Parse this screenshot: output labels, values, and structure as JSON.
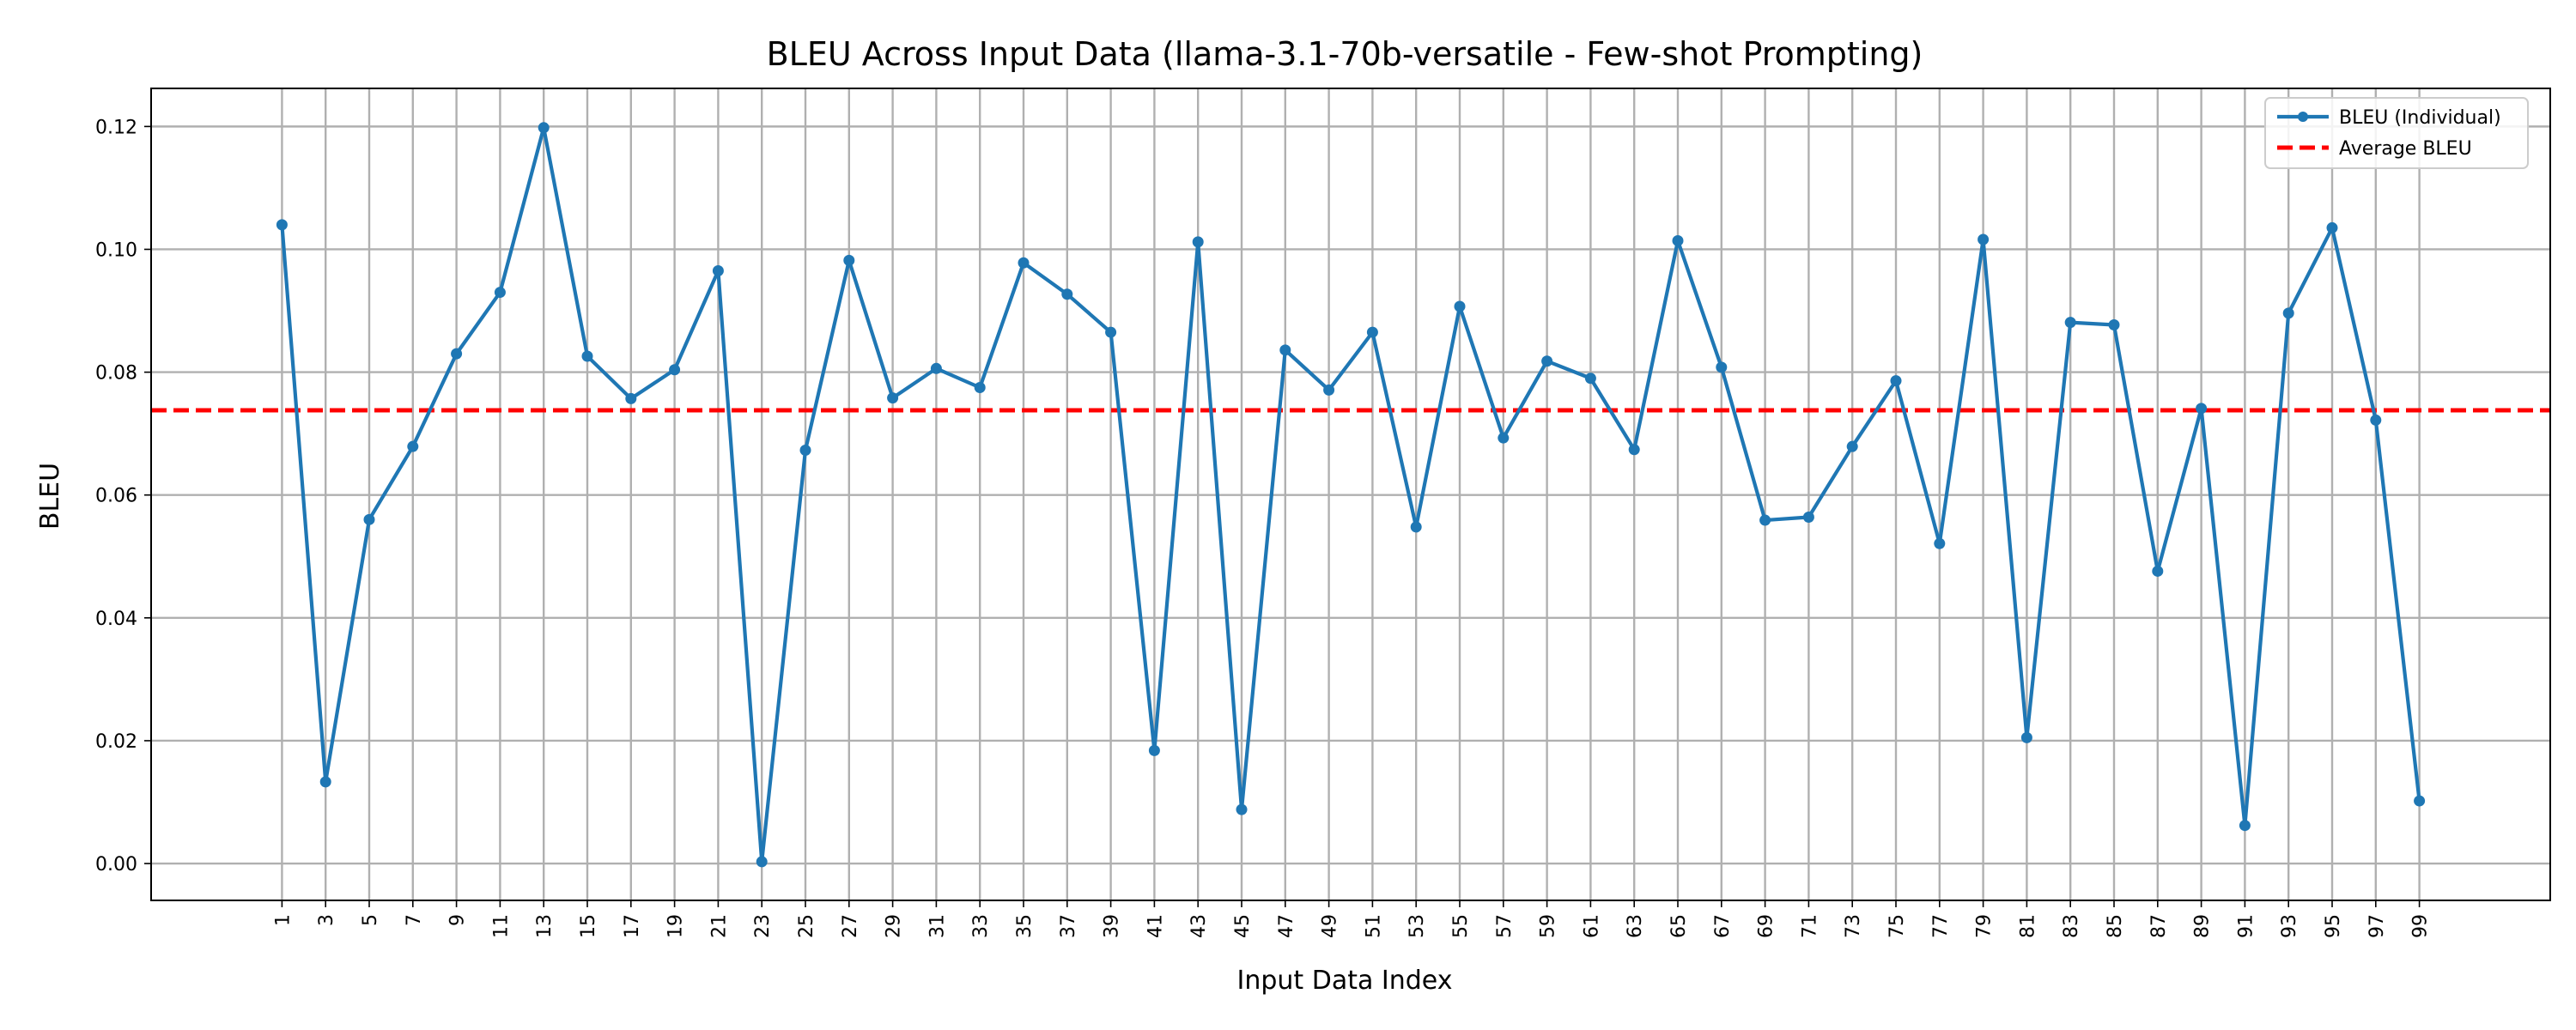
{
  "chart_data": {
    "type": "line",
    "title": "BLEU Across Input Data (llama-3.1-70b-versatile - Few-shot Prompting)",
    "xlabel": "Input Data Index",
    "ylabel": "BLEU",
    "xlim": [
      -5,
      105
    ],
    "ylim": [
      -0.006,
      0.1262
    ],
    "xticks": [
      1,
      3,
      5,
      7,
      9,
      11,
      13,
      15,
      17,
      19,
      21,
      23,
      25,
      27,
      29,
      31,
      33,
      35,
      37,
      39,
      41,
      43,
      45,
      47,
      49,
      51,
      53,
      55,
      57,
      59,
      61,
      63,
      65,
      67,
      69,
      71,
      73,
      75,
      77,
      79,
      81,
      83,
      85,
      87,
      89,
      91,
      93,
      95,
      97,
      99
    ],
    "xtick_labels": [
      "1",
      "3",
      "5",
      "7",
      "9",
      "11",
      "13",
      "15",
      "17",
      "19",
      "21",
      "23",
      "25",
      "27",
      "29",
      "31",
      "33",
      "35",
      "37",
      "39",
      "41",
      "43",
      "45",
      "47",
      "49",
      "51",
      "53",
      "55",
      "57",
      "59",
      "61",
      "63",
      "65",
      "67",
      "69",
      "71",
      "73",
      "75",
      "77",
      "79",
      "81",
      "83",
      "85",
      "87",
      "89",
      "91",
      "93",
      "95",
      "97",
      "99"
    ],
    "yticks": [
      0,
      0.02,
      0.04,
      0.06,
      0.08,
      0.1,
      0.12
    ],
    "ytick_labels": [
      "0.00",
      "0.02",
      "0.04",
      "0.06",
      "0.08",
      "0.10",
      "0.12"
    ],
    "grid": true,
    "legend": "top-right",
    "series": [
      {
        "name": "BLEU (Individual)",
        "color": "#1f77b4",
        "style": "solid-with-markers",
        "x": [
          1,
          3,
          5,
          7,
          9,
          11,
          13,
          15,
          17,
          19,
          21,
          23,
          25,
          27,
          29,
          31,
          33,
          35,
          37,
          39,
          41,
          43,
          45,
          47,
          49,
          51,
          53,
          55,
          57,
          59,
          61,
          63,
          65,
          67,
          69,
          71,
          73,
          75,
          77,
          79,
          81,
          83,
          85,
          87,
          89,
          91,
          93,
          95,
          97,
          99
        ],
        "values": [
          0.104,
          0.0133,
          0.056,
          0.0679,
          0.083,
          0.093,
          0.1198,
          0.0826,
          0.0757,
          0.0804,
          0.0965,
          0.0003,
          0.0673,
          0.0982,
          0.0758,
          0.0806,
          0.0775,
          0.0978,
          0.0927,
          0.0865,
          0.0184,
          0.1012,
          0.0088,
          0.0836,
          0.0771,
          0.0865,
          0.0548,
          0.0907,
          0.0693,
          0.0818,
          0.079,
          0.0674,
          0.1014,
          0.0808,
          0.0559,
          0.0564,
          0.0679,
          0.0786,
          0.0521,
          0.1016,
          0.0205,
          0.0881,
          0.0877,
          0.0476,
          0.0741,
          0.0062,
          0.0896,
          0.1035,
          0.0722,
          0.0102
        ]
      },
      {
        "name": "Average BLEU",
        "color": "#ff0000",
        "style": "dashed",
        "value": 0.0738
      }
    ]
  }
}
